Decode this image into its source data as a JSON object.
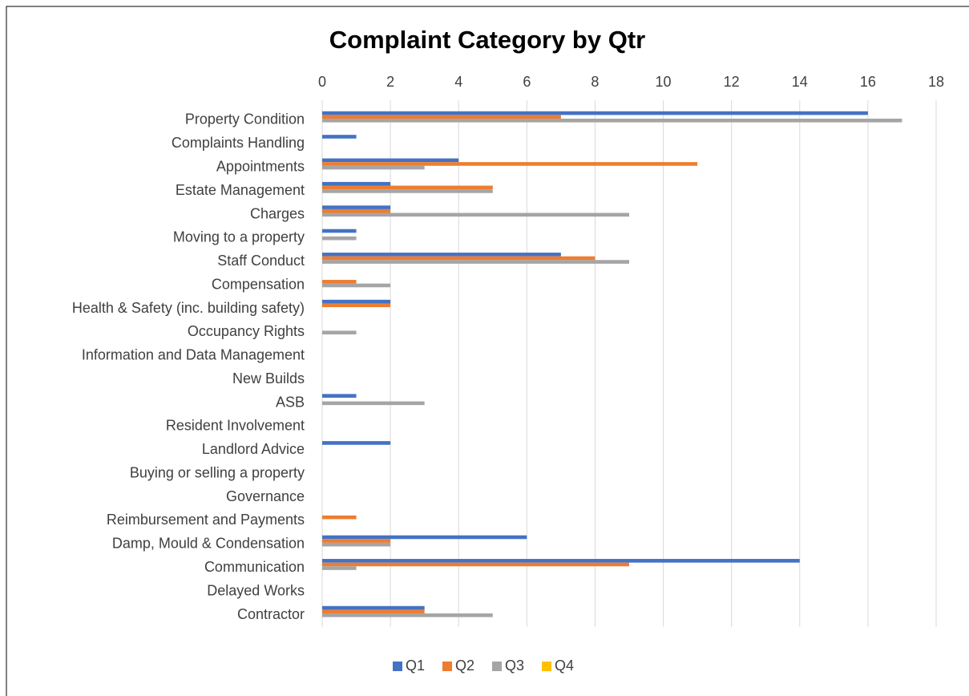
{
  "chart_data": {
    "type": "bar",
    "orientation": "horizontal",
    "title": "Complaint Category by Qtr",
    "categories": [
      "Property Condition",
      "Complaints Handling",
      "Appointments",
      "Estate Management",
      "Charges",
      "Moving to a property",
      "Staff Conduct",
      "Compensation",
      "Health & Safety (inc. building safety)",
      "Occupancy Rights",
      "Information and Data Management",
      "New Builds",
      "ASB",
      "Resident Involvement",
      "Landlord Advice",
      "Buying or selling a property",
      "Governance",
      "Reimbursement and Payments",
      "Damp, Mould & Condensation",
      "Communication",
      "Delayed Works",
      "Contractor"
    ],
    "series": [
      {
        "name": "Q1",
        "color": "#4472c4",
        "values": [
          16,
          1,
          4,
          2,
          2,
          1,
          7,
          0,
          2,
          0,
          0,
          0,
          1,
          0,
          2,
          0,
          0,
          0,
          6,
          14,
          0,
          3
        ]
      },
      {
        "name": "Q2",
        "color": "#ed7d31",
        "values": [
          7,
          0,
          11,
          5,
          2,
          0,
          8,
          1,
          2,
          0,
          0,
          0,
          0,
          0,
          0,
          0,
          0,
          1,
          2,
          9,
          0,
          3
        ]
      },
      {
        "name": "Q3",
        "color": "#a5a5a5",
        "values": [
          17,
          0,
          3,
          5,
          9,
          1,
          9,
          2,
          0,
          1,
          0,
          0,
          3,
          0,
          0,
          0,
          0,
          0,
          2,
          1,
          0,
          5
        ]
      },
      {
        "name": "Q4",
        "color": "#ffc000",
        "values": [
          0,
          0,
          0,
          0,
          0,
          0,
          0,
          0,
          0,
          0,
          0,
          0,
          0,
          0,
          0,
          0,
          0,
          0,
          0,
          0,
          0,
          0
        ]
      }
    ],
    "xlim": [
      0,
      18
    ],
    "xticks": [
      0,
      2,
      4,
      6,
      8,
      10,
      12,
      14,
      16,
      18
    ],
    "grid": true,
    "legend": "bottom"
  }
}
